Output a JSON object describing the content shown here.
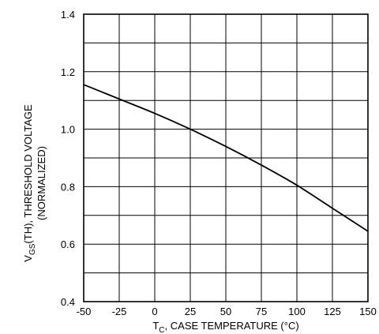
{
  "chart_data": {
    "type": "line",
    "xlabel": {
      "main": "T",
      "sub": "C",
      "rest": ", CASE TEMPERATURE (°C)"
    },
    "ylabel": {
      "line1_main": "V",
      "line1_sub": "GS",
      "line1_rest": "(TH), THRESHOLD VOLTAGE",
      "line2": "(NORMALIZED)"
    },
    "xlim": [
      -50,
      150
    ],
    "ylim": [
      0.4,
      1.4
    ],
    "xticks": [
      -50,
      -25,
      0,
      25,
      50,
      75,
      100,
      125,
      150
    ],
    "xtick_labels": [
      "-50",
      "-25",
      "0",
      "25",
      "50",
      "75",
      "100",
      "125",
      "150"
    ],
    "yticks": [
      0.4,
      0.6,
      0.8,
      1.0,
      1.2,
      1.4
    ],
    "ytick_labels": [
      "0.4",
      "0.6",
      "0.8",
      "1.0",
      "1.2",
      "1.4"
    ],
    "y_minor_gridlines": [
      0.5,
      0.7,
      0.9,
      1.1,
      1.3
    ],
    "grid": true,
    "series": [
      {
        "x": [
          -50,
          -25,
          0,
          25,
          50,
          75,
          100,
          125,
          150
        ],
        "y": [
          1.155,
          1.105,
          1.055,
          1.0,
          0.94,
          0.875,
          0.805,
          0.725,
          0.645
        ]
      }
    ],
    "colors": {
      "line": "#000000",
      "grid": "#000000",
      "background": "#ffffff"
    }
  }
}
